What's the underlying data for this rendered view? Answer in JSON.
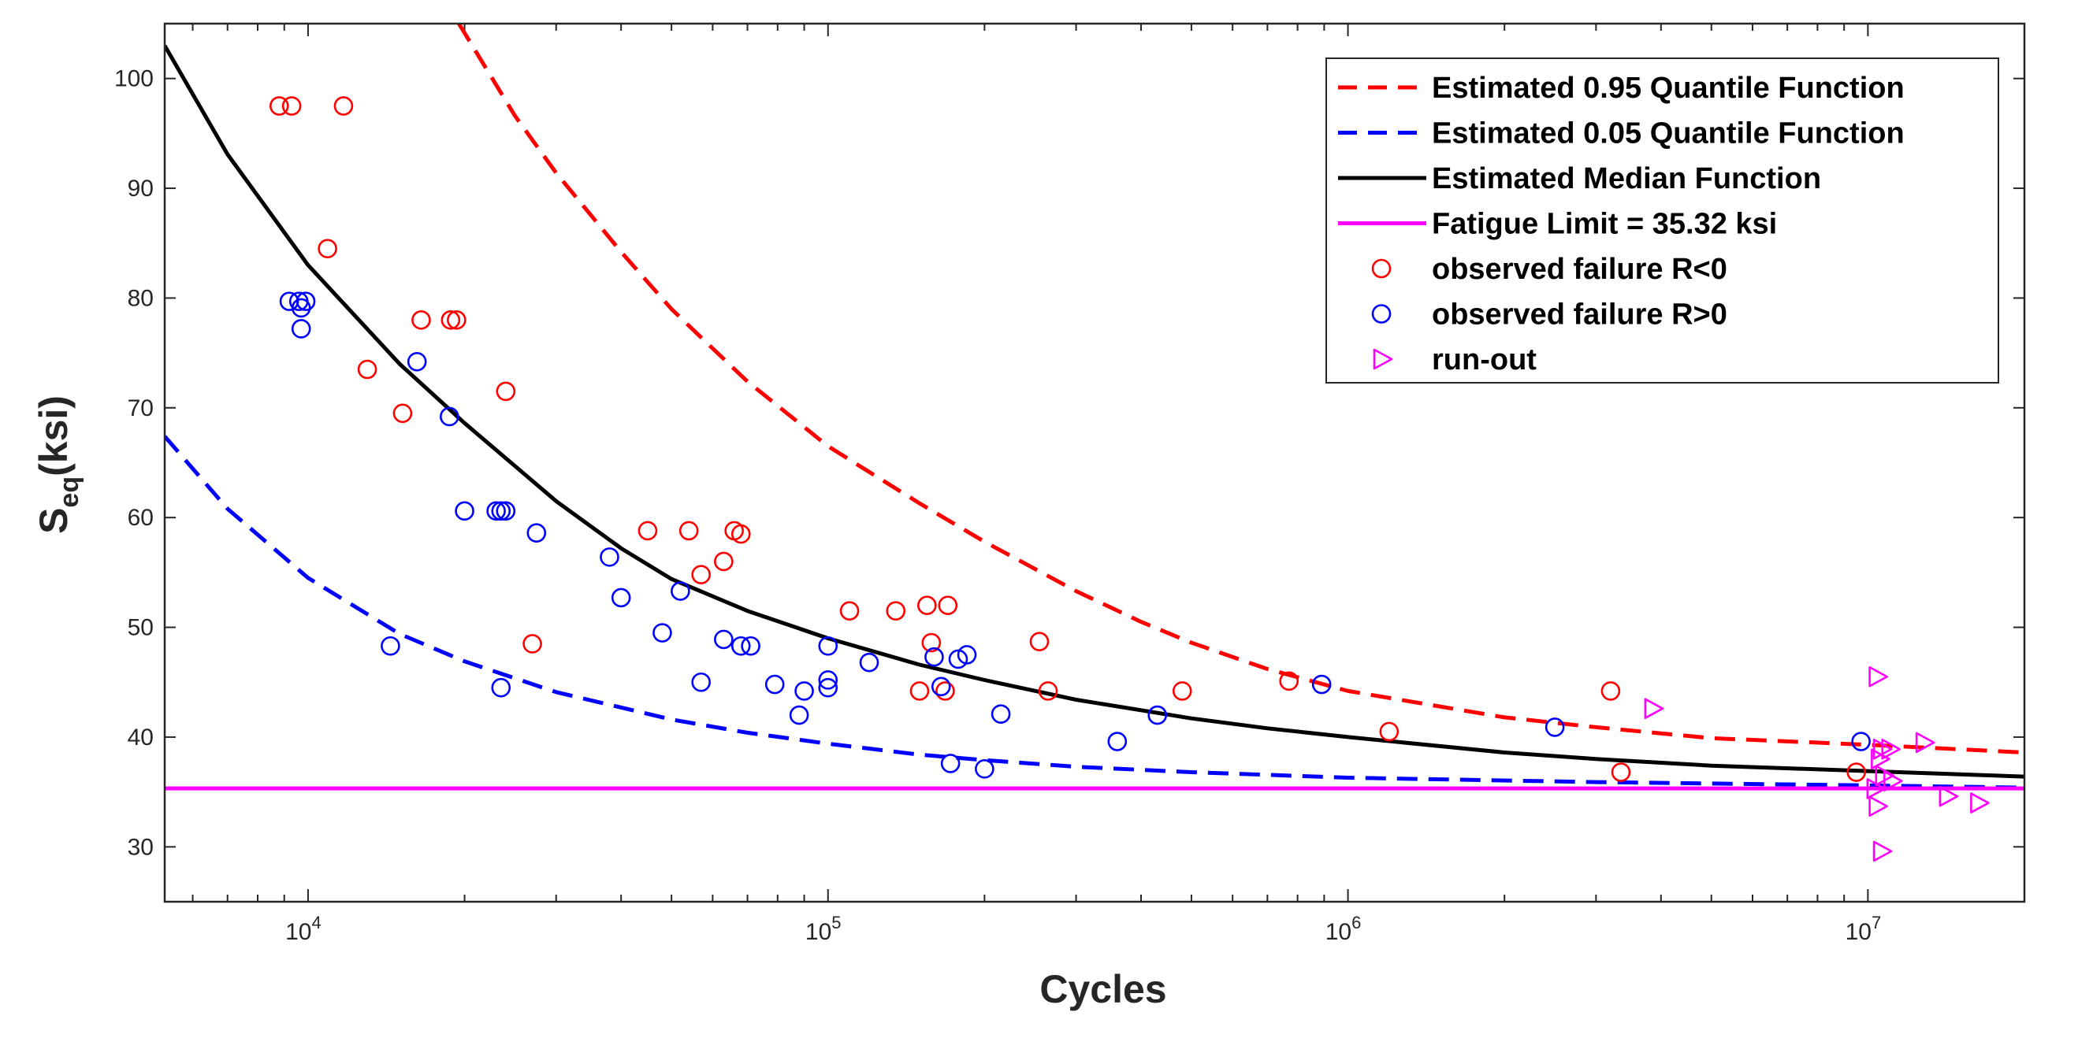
{
  "chart_data": {
    "type": "scatter",
    "xlabel": "Cycles",
    "ylabel": {
      "main": "S",
      "sub": "eq",
      "suffix": "(ksi)"
    },
    "x_scale": "log",
    "xlim": [
      5300,
      20000000
    ],
    "ylim": [
      25,
      105
    ],
    "y_ticks": [
      30,
      40,
      50,
      60,
      70,
      80,
      90,
      100
    ],
    "x_ticks": [
      {
        "value": 10000,
        "base": "10",
        "exp": "4"
      },
      {
        "value": 100000,
        "base": "10",
        "exp": "5"
      },
      {
        "value": 1000000,
        "base": "10",
        "exp": "6"
      },
      {
        "value": 10000000,
        "base": "10",
        "exp": "7"
      }
    ],
    "grid": false,
    "legend_position": "top-right",
    "fatigue_limit": 35.32,
    "curves": [
      {
        "name": "Estimated 0.95 Quantile Function",
        "style": "dashed",
        "color": "#ff0000",
        "points": [
          [
            19500,
            105
          ],
          [
            25000,
            96.6
          ],
          [
            30000,
            91.4
          ],
          [
            40000,
            84.2
          ],
          [
            50000,
            79.0
          ],
          [
            60000,
            75.4
          ],
          [
            70000,
            72.4
          ],
          [
            100000,
            66.5
          ],
          [
            150000,
            61.3
          ],
          [
            200000,
            57.8
          ],
          [
            300000,
            53.3
          ],
          [
            400000,
            50.5
          ],
          [
            500000,
            48.6
          ],
          [
            700000,
            46.2
          ],
          [
            1000000,
            44.2
          ],
          [
            2000000,
            41.8
          ],
          [
            3000000,
            40.9
          ],
          [
            5000000,
            39.9
          ],
          [
            10000000,
            39.3
          ],
          [
            20000000,
            38.6
          ]
        ]
      },
      {
        "name": "Estimated 0.05 Quantile Function",
        "style": "dashed",
        "color": "#0000ff",
        "points": [
          [
            5300,
            67.4
          ],
          [
            7000,
            60.8
          ],
          [
            10000,
            54.5
          ],
          [
            15000,
            49.4
          ],
          [
            20000,
            46.9
          ],
          [
            30000,
            44.1
          ],
          [
            50000,
            41.6
          ],
          [
            70000,
            40.4
          ],
          [
            100000,
            39.4
          ],
          [
            150000,
            38.4
          ],
          [
            200000,
            37.9
          ],
          [
            300000,
            37.3
          ],
          [
            500000,
            36.8
          ],
          [
            1000000,
            36.3
          ],
          [
            3000000,
            35.9
          ],
          [
            10000000,
            35.6
          ],
          [
            20000000,
            35.4
          ]
        ]
      },
      {
        "name": "Estimated Median Function",
        "style": "solid",
        "color": "#000000",
        "points": [
          [
            5300,
            103
          ],
          [
            7000,
            93.1
          ],
          [
            10000,
            83.0
          ],
          [
            15000,
            74.0
          ],
          [
            20000,
            68.6
          ],
          [
            30000,
            61.5
          ],
          [
            40000,
            57.2
          ],
          [
            50000,
            54.4
          ],
          [
            70000,
            51.5
          ],
          [
            100000,
            49.0
          ],
          [
            150000,
            46.6
          ],
          [
            200000,
            45.2
          ],
          [
            300000,
            43.4
          ],
          [
            500000,
            41.7
          ],
          [
            700000,
            40.8
          ],
          [
            1000000,
            40.0
          ],
          [
            2000000,
            38.6
          ],
          [
            3000000,
            38.0
          ],
          [
            5000000,
            37.4
          ],
          [
            10000000,
            36.9
          ],
          [
            20000000,
            36.4
          ]
        ]
      }
    ],
    "series": [
      {
        "name": "observed failure R<0",
        "marker": "circle",
        "color": "#ff0000",
        "points": [
          [
            8800,
            97.5
          ],
          [
            9300,
            97.5
          ],
          [
            11700,
            97.5
          ],
          [
            10900,
            84.5
          ],
          [
            16500,
            78
          ],
          [
            18800,
            78
          ],
          [
            19300,
            78
          ],
          [
            13000,
            73.5
          ],
          [
            24000,
            71.5
          ],
          [
            15200,
            69.5
          ],
          [
            27000,
            48.5
          ],
          [
            45000,
            58.8
          ],
          [
            54000,
            58.8
          ],
          [
            66000,
            58.8
          ],
          [
            68000,
            58.5
          ],
          [
            57000,
            54.8
          ],
          [
            63000,
            56
          ],
          [
            110000,
            51.5
          ],
          [
            135000,
            51.5
          ],
          [
            155000,
            52
          ],
          [
            170000,
            52
          ],
          [
            158000,
            48.6
          ],
          [
            150000,
            44.2
          ],
          [
            168000,
            44.2
          ],
          [
            255000,
            48.7
          ],
          [
            265000,
            44.2
          ],
          [
            480000,
            44.2
          ],
          [
            770000,
            45.1
          ],
          [
            1200000,
            40.5
          ],
          [
            3200000,
            44.2
          ],
          [
            3350000,
            36.8
          ],
          [
            9500000,
            36.8
          ]
        ]
      },
      {
        "name": "observed failure R>0",
        "marker": "circle",
        "color": "#0000ff",
        "points": [
          [
            9200,
            79.7
          ],
          [
            9600,
            79.7
          ],
          [
            9700,
            79.1
          ],
          [
            9900,
            79.7
          ],
          [
            9700,
            77.2
          ],
          [
            16200,
            74.2
          ],
          [
            18700,
            69.2
          ],
          [
            20000,
            60.6
          ],
          [
            23000,
            60.6
          ],
          [
            23500,
            60.6
          ],
          [
            24000,
            60.6
          ],
          [
            27500,
            58.6
          ],
          [
            14400,
            48.3
          ],
          [
            23500,
            44.5
          ],
          [
            38000,
            56.4
          ],
          [
            40000,
            52.7
          ],
          [
            48000,
            49.5
          ],
          [
            52000,
            53.3
          ],
          [
            57000,
            45
          ],
          [
            63000,
            48.9
          ],
          [
            68000,
            48.3
          ],
          [
            71000,
            48.3
          ],
          [
            79000,
            44.8
          ],
          [
            90000,
            44.2
          ],
          [
            88000,
            42
          ],
          [
            100000,
            48.3
          ],
          [
            100000,
            45.2
          ],
          [
            100000,
            44.5
          ],
          [
            120000,
            46.8
          ],
          [
            160000,
            47.3
          ],
          [
            165000,
            44.6
          ],
          [
            178000,
            47.1
          ],
          [
            185000,
            47.5
          ],
          [
            172000,
            37.6
          ],
          [
            200000,
            37.1
          ],
          [
            215000,
            42.1
          ],
          [
            360000,
            39.6
          ],
          [
            430000,
            42
          ],
          [
            890000,
            44.8
          ],
          [
            2500000,
            40.9
          ],
          [
            9700000,
            39.6
          ]
        ]
      },
      {
        "name": "run-out",
        "marker": "triangle-right",
        "color": "#ff00ff",
        "points": [
          [
            3850000,
            42.6
          ],
          [
            10400000,
            45.5
          ],
          [
            10600000,
            38.9
          ],
          [
            11000000,
            38.9
          ],
          [
            10500000,
            38
          ],
          [
            10700000,
            36.5
          ],
          [
            11100000,
            36
          ],
          [
            10300000,
            35.3
          ],
          [
            10400000,
            33.7
          ],
          [
            12800000,
            39.5
          ],
          [
            14200000,
            34.6
          ],
          [
            16300000,
            34
          ],
          [
            10600000,
            29.6
          ]
        ]
      }
    ],
    "legend": [
      {
        "label": "Estimated 0.95 Quantile Function",
        "kind": "dashed-line",
        "color": "#ff0000"
      },
      {
        "label": "Estimated 0.05 Quantile Function",
        "kind": "dashed-line",
        "color": "#0000ff"
      },
      {
        "label": "Estimated Median Function",
        "kind": "solid-line",
        "color": "#000000"
      },
      {
        "label": "Fatigue Limit = 35.32 ksi",
        "kind": "solid-line",
        "color": "#ff00ff"
      },
      {
        "label": "observed failure R<0",
        "kind": "circle",
        "color": "#ff0000"
      },
      {
        "label": "observed failure R>0",
        "kind": "circle",
        "color": "#0000ff"
      },
      {
        "label": "run-out",
        "kind": "triangle-right",
        "color": "#ff00ff"
      }
    ]
  }
}
